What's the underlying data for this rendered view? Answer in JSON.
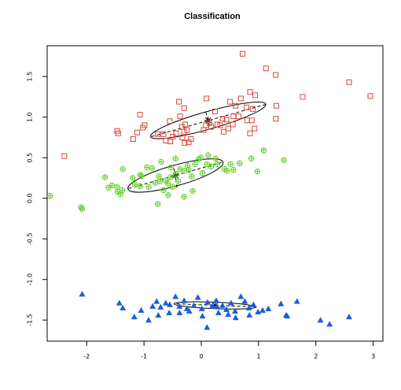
{
  "chart_data": {
    "type": "scatter",
    "title": "Classification",
    "xlabel": "",
    "ylabel": "",
    "xlim": [
      -2.69,
      3.17
    ],
    "ylim": [
      -1.76,
      1.88
    ],
    "x_ticks": [
      -2,
      -1,
      0,
      1,
      2,
      3
    ],
    "x_tick_labels": [
      "-2",
      "-1",
      "0",
      "1",
      "2",
      "3"
    ],
    "y_ticks": [
      -1.5,
      -1.0,
      -0.5,
      0.0,
      0.5,
      1.0,
      1.5
    ],
    "y_tick_labels": [
      "-1.5",
      "-1.0",
      "-0.5",
      "0.0",
      "0.5",
      "1.0",
      "1.5"
    ],
    "grid": false,
    "legend": "none",
    "series": [
      {
        "marker": "square",
        "color": "#d9473a",
        "points": [
          [
            0.72,
            1.78
          ],
          [
            1.13,
            1.6
          ],
          [
            1.3,
            1.52
          ],
          [
            2.58,
            1.43
          ],
          [
            2.95,
            1.26
          ],
          [
            1.77,
            1.25
          ],
          [
            0.09,
            1.23
          ],
          [
            -0.39,
            1.19
          ],
          [
            0.85,
            1.31
          ],
          [
            0.94,
            1.27
          ],
          [
            0.69,
            1.23
          ],
          [
            0.5,
            1.19
          ],
          [
            0.24,
            1.07
          ],
          [
            0.6,
            1.14
          ],
          [
            0.79,
            1.12
          ],
          [
            0.9,
            1.1
          ],
          [
            -0.3,
            1.11
          ],
          [
            1.31,
            1.14
          ],
          [
            -1.07,
            1.03
          ],
          [
            -0.37,
            1.01
          ],
          [
            -0.28,
            0.91
          ],
          [
            -1.02,
            0.87
          ],
          [
            -1.12,
            0.81
          ],
          [
            -1.47,
            0.83
          ],
          [
            -1.45,
            0.8
          ],
          [
            -0.99,
            0.9
          ],
          [
            -1.19,
            0.73
          ],
          [
            -0.66,
            0.79
          ],
          [
            -0.5,
            0.76
          ],
          [
            -0.62,
            0.71
          ],
          [
            -0.44,
            0.8
          ],
          [
            -0.33,
            0.75
          ],
          [
            -0.3,
            0.82
          ],
          [
            -0.18,
            0.73
          ],
          [
            -0.29,
            0.68
          ],
          [
            -0.22,
            0.69
          ],
          [
            -0.54,
            0.7
          ],
          [
            -0.34,
            0.88
          ],
          [
            0.04,
            0.84
          ],
          [
            0.08,
            0.9
          ],
          [
            0.33,
            0.9
          ],
          [
            0.37,
            0.98
          ],
          [
            0.44,
            0.97
          ],
          [
            0.47,
            0.86
          ],
          [
            0.56,
            1.01
          ],
          [
            0.65,
            1.01
          ],
          [
            0.8,
            0.96
          ],
          [
            0.88,
            0.96
          ],
          [
            0.93,
            0.86
          ],
          [
            0.85,
            0.8
          ],
          [
            1.3,
            0.98
          ],
          [
            0.14,
            0.93
          ],
          [
            -0.55,
            0.95
          ],
          [
            -2.39,
            0.52
          ],
          [
            0.17,
            0.88
          ],
          [
            0.28,
            0.91
          ],
          [
            -0.25,
            0.84
          ],
          [
            -0.76,
            0.79
          ],
          [
            0.55,
            0.91
          ],
          [
            0.39,
            0.82
          ]
        ]
      },
      {
        "marker": "circle-plus",
        "color": "#66cc33",
        "points": [
          [
            -2.64,
            0.03
          ],
          [
            -2.1,
            -0.11
          ],
          [
            -2.08,
            -0.13
          ],
          [
            -1.68,
            0.26
          ],
          [
            -1.62,
            0.13
          ],
          [
            -1.46,
            0.08
          ],
          [
            -1.56,
            0.16
          ],
          [
            -1.47,
            0.14
          ],
          [
            -1.41,
            0.05
          ],
          [
            -1.38,
            0.1
          ],
          [
            -1.37,
            0.36
          ],
          [
            -1.2,
            0.25
          ],
          [
            -1.16,
            0.17
          ],
          [
            -1.04,
            0.27
          ],
          [
            -1.07,
            0.15
          ],
          [
            -0.95,
            0.38
          ],
          [
            -0.86,
            0.37
          ],
          [
            -0.74,
            0.27
          ],
          [
            -0.8,
            0.19
          ],
          [
            -0.72,
            0.21
          ],
          [
            -0.62,
            0.22
          ],
          [
            -0.58,
            0.18
          ],
          [
            -0.54,
            0.26
          ],
          [
            -0.5,
            0.14
          ],
          [
            -0.44,
            0.3
          ],
          [
            -0.4,
            0.21
          ],
          [
            -0.37,
            0.36
          ],
          [
            -0.3,
            0.34
          ],
          [
            -0.24,
            0.4
          ],
          [
            -0.22,
            0.35
          ],
          [
            -0.17,
            0.27
          ],
          [
            -0.11,
            0.42
          ],
          [
            -0.05,
            0.48
          ],
          [
            -0.01,
            0.5
          ],
          [
            0.1,
            0.42
          ],
          [
            0.17,
            0.39
          ],
          [
            0.28,
            0.42
          ],
          [
            0.4,
            0.36
          ],
          [
            0.45,
            0.34
          ],
          [
            0.51,
            0.42
          ],
          [
            0.56,
            0.35
          ],
          [
            0.67,
            0.43
          ],
          [
            0.87,
            0.49
          ],
          [
            0.98,
            0.33
          ],
          [
            1.09,
            0.59
          ],
          [
            1.44,
            0.47
          ],
          [
            -0.76,
            -0.07
          ],
          [
            -0.58,
            0.04
          ],
          [
            -0.15,
            0.09
          ],
          [
            -0.3,
            0.02
          ],
          [
            -0.66,
            0.1
          ],
          [
            -1.07,
            0.29
          ],
          [
            -0.7,
            0.45
          ],
          [
            0.12,
            0.53
          ],
          [
            -0.45,
            0.49
          ],
          [
            0.02,
            0.31
          ],
          [
            -0.92,
            0.14
          ],
          [
            -0.53,
            0.38
          ],
          [
            0.25,
            0.49
          ]
        ]
      },
      {
        "marker": "triangle",
        "color": "#1a5fd6",
        "points": [
          [
            -2.08,
            -1.18
          ],
          [
            -1.43,
            -1.29
          ],
          [
            -1.37,
            -1.35
          ],
          [
            -1.17,
            -1.46
          ],
          [
            -1.05,
            -1.38
          ],
          [
            -0.85,
            -1.33
          ],
          [
            -0.78,
            -1.27
          ],
          [
            -0.71,
            -1.34
          ],
          [
            -0.62,
            -1.29
          ],
          [
            -0.55,
            -1.31
          ],
          [
            -0.45,
            -1.21
          ],
          [
            -0.38,
            -1.33
          ],
          [
            -0.3,
            -1.26
          ],
          [
            -0.21,
            -1.39
          ],
          [
            -0.13,
            -1.32
          ],
          [
            -0.06,
            -1.22
          ],
          [
            0.01,
            -1.36
          ],
          [
            0.11,
            -1.28
          ],
          [
            0.19,
            -1.33
          ],
          [
            0.26,
            -1.26
          ],
          [
            0.3,
            -1.41
          ],
          [
            0.37,
            -1.32
          ],
          [
            0.44,
            -1.37
          ],
          [
            0.52,
            -1.29
          ],
          [
            0.59,
            -1.39
          ],
          [
            0.69,
            -1.21
          ],
          [
            0.76,
            -1.27
          ],
          [
            0.83,
            -1.35
          ],
          [
            0.91,
            -1.31
          ],
          [
            0.99,
            -1.4
          ],
          [
            1.07,
            -1.38
          ],
          [
            1.17,
            -1.36
          ],
          [
            1.39,
            -1.3
          ],
          [
            1.48,
            -1.44
          ],
          [
            1.5,
            -1.45
          ],
          [
            1.67,
            -1.27
          ],
          [
            2.08,
            -1.5
          ],
          [
            2.24,
            -1.55
          ],
          [
            2.58,
            -1.46
          ],
          [
            0.1,
            -1.59
          ],
          [
            -0.56,
            -1.41
          ],
          [
            -0.75,
            -1.44
          ],
          [
            0.27,
            -1.33
          ],
          [
            0.6,
            -1.47
          ],
          [
            -0.25,
            -1.36
          ],
          [
            0.47,
            -1.43
          ],
          [
            -0.92,
            -1.5
          ],
          [
            0.02,
            -1.45
          ],
          [
            0.84,
            -1.44
          ],
          [
            -0.38,
            -1.41
          ]
        ]
      }
    ],
    "ellipses": [
      {
        "center": [
          0.12,
          0.96
        ],
        "axis_major": [
          [
            -0.87,
            0.76
          ],
          [
            1.14,
            1.16
          ]
        ],
        "axis_minor": [
          [
            0.08,
            1.06
          ],
          [
            0.16,
            0.85
          ]
        ]
      },
      {
        "center": [
          -0.45,
          0.28
        ],
        "axis_major": [
          [
            -1.27,
            0.12
          ],
          [
            0.39,
            0.45
          ]
        ],
        "axis_minor": [
          [
            -0.48,
            0.37
          ],
          [
            -0.42,
            0.12
          ]
        ]
      },
      {
        "center": [
          0.24,
          -1.32
        ],
        "axis_major": [
          [
            -0.43,
            -1.3
          ],
          [
            1.0,
            -1.34
          ]
        ],
        "axis_minor": [
          [
            0.24,
            -1.28
          ],
          [
            0.24,
            -1.36
          ]
        ]
      }
    ]
  }
}
